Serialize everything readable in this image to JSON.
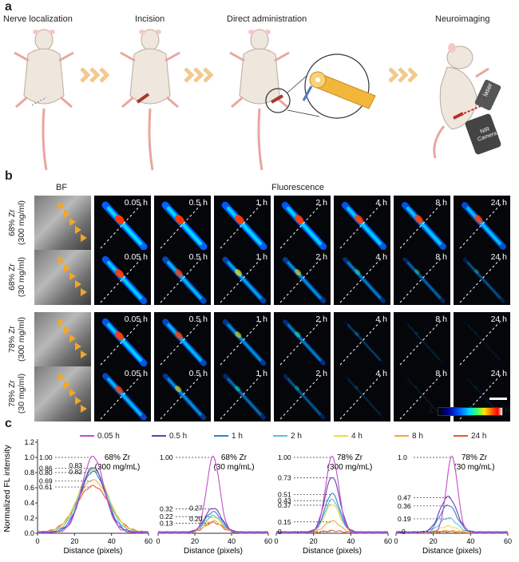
{
  "panel_a": {
    "letter": "a",
    "steps": [
      "Nerve localization",
      "Incision",
      "Direct administration",
      "Neuroimaging"
    ],
    "device_labels": {
      "laser": "laser",
      "camera": "NIR Camera"
    },
    "colors": {
      "mouse": "#efe6dd",
      "tail": "#e9a6a0",
      "chevron": "#f2c98f",
      "laser_red": "#e02020"
    }
  },
  "panel_b": {
    "letter": "b",
    "bf_label": "BF",
    "fluorescence_label": "Fluorescence",
    "times": [
      "0.05 h",
      "0.5 h",
      "1 h",
      "2 h",
      "4 h",
      "8 h",
      "24 h"
    ],
    "rows": [
      {
        "label_line1": "68% Zr",
        "label_line2": "(300 mg/ml)",
        "intensity": [
          1.0,
          1.0,
          0.95,
          0.92,
          0.88,
          0.85,
          0.8
        ]
      },
      {
        "label_line1": "68% Zr",
        "label_line2": "(30 mg/ml)",
        "intensity": [
          0.9,
          0.75,
          0.65,
          0.55,
          0.45,
          0.35,
          0.28
        ]
      },
      {
        "label_line1": "78% Zr",
        "label_line2": "(300 mg/ml)",
        "intensity": [
          0.9,
          0.75,
          0.55,
          0.45,
          0.25,
          0.12,
          0.05
        ]
      },
      {
        "label_line1": "78% Zr",
        "label_line2": "(30 mg/ml)",
        "intensity": [
          0.75,
          0.55,
          0.4,
          0.3,
          0.15,
          0.06,
          0.02
        ]
      }
    ],
    "colorbar": {
      "low": "L",
      "high": "H"
    }
  },
  "panel_c": {
    "letter": "c",
    "chart_data": {
      "type": "line",
      "ylabel": "Normalized FL intensity",
      "xlabel": "Distance (pixels)",
      "xlim": [
        0,
        60
      ],
      "ylim": [
        0,
        1.2
      ],
      "x_ticks": [
        0,
        20,
        40,
        60
      ],
      "y_ticks": [
        0.0,
        0.2,
        0.4,
        0.6,
        0.8,
        1.0,
        1.2
      ],
      "legend": [
        {
          "name": "0.05 h",
          "color": "#c34fc8"
        },
        {
          "name": "0.5 h",
          "color": "#6a3db5"
        },
        {
          "name": "1 h",
          "color": "#3a7fd0"
        },
        {
          "name": "2 h",
          "color": "#58c4e0"
        },
        {
          "name": "4 h",
          "color": "#f0dc3a"
        },
        {
          "name": "8 h",
          "color": "#f4a93a"
        },
        {
          "name": "24 h",
          "color": "#e65a2e"
        }
      ],
      "subplots": [
        {
          "title_line1": "68% Zr",
          "title_line2": "(300 mg/mL)",
          "peak_labels": [
            "1.00",
            "0.86",
            "0.80",
            "0.69",
            "0.61",
            "0.83",
            "0.82"
          ],
          "series_peaks": [
            1.0,
            0.86,
            0.8,
            0.83,
            0.82,
            0.69,
            0.61
          ],
          "widths": [
            6,
            6.5,
            7,
            7.5,
            8,
            8.5,
            9
          ]
        },
        {
          "title_line1": "68% Zr",
          "title_line2": "(30 mg/mL)",
          "peak_labels": [
            "1.00",
            "0.32",
            "0.22",
            "0.13",
            "0.27",
            "0.20"
          ],
          "series_peaks": [
            1.0,
            0.32,
            0.27,
            0.22,
            0.2,
            0.15,
            0.13
          ],
          "widths": [
            3.5,
            4.5,
            4.5,
            4.5,
            4.5,
            4.5,
            4.5
          ]
        },
        {
          "title_line1": "78% Zr",
          "title_line2": "(300 mg/mL)",
          "peak_labels": [
            "1.00",
            "0.73",
            "0.51",
            "0.43",
            "0.37",
            "0.15",
            "0"
          ],
          "series_peaks": [
            1.0,
            0.73,
            0.51,
            0.43,
            0.37,
            0.15,
            0.02
          ],
          "widths": [
            3.5,
            4,
            4,
            4,
            4,
            4,
            4
          ]
        },
        {
          "title_line1": "78% Zr",
          "title_line2": "(30 mg/mL)",
          "peak_labels": [
            "1.0",
            "0.47",
            "0.36",
            "0.19",
            "~0"
          ],
          "series_peaks": [
            1.0,
            0.47,
            0.36,
            0.19,
            0.08,
            0.02,
            0.01
          ],
          "widths": [
            3,
            4.5,
            4.5,
            4.5,
            4.5,
            4.5,
            4.5
          ]
        }
      ]
    }
  }
}
